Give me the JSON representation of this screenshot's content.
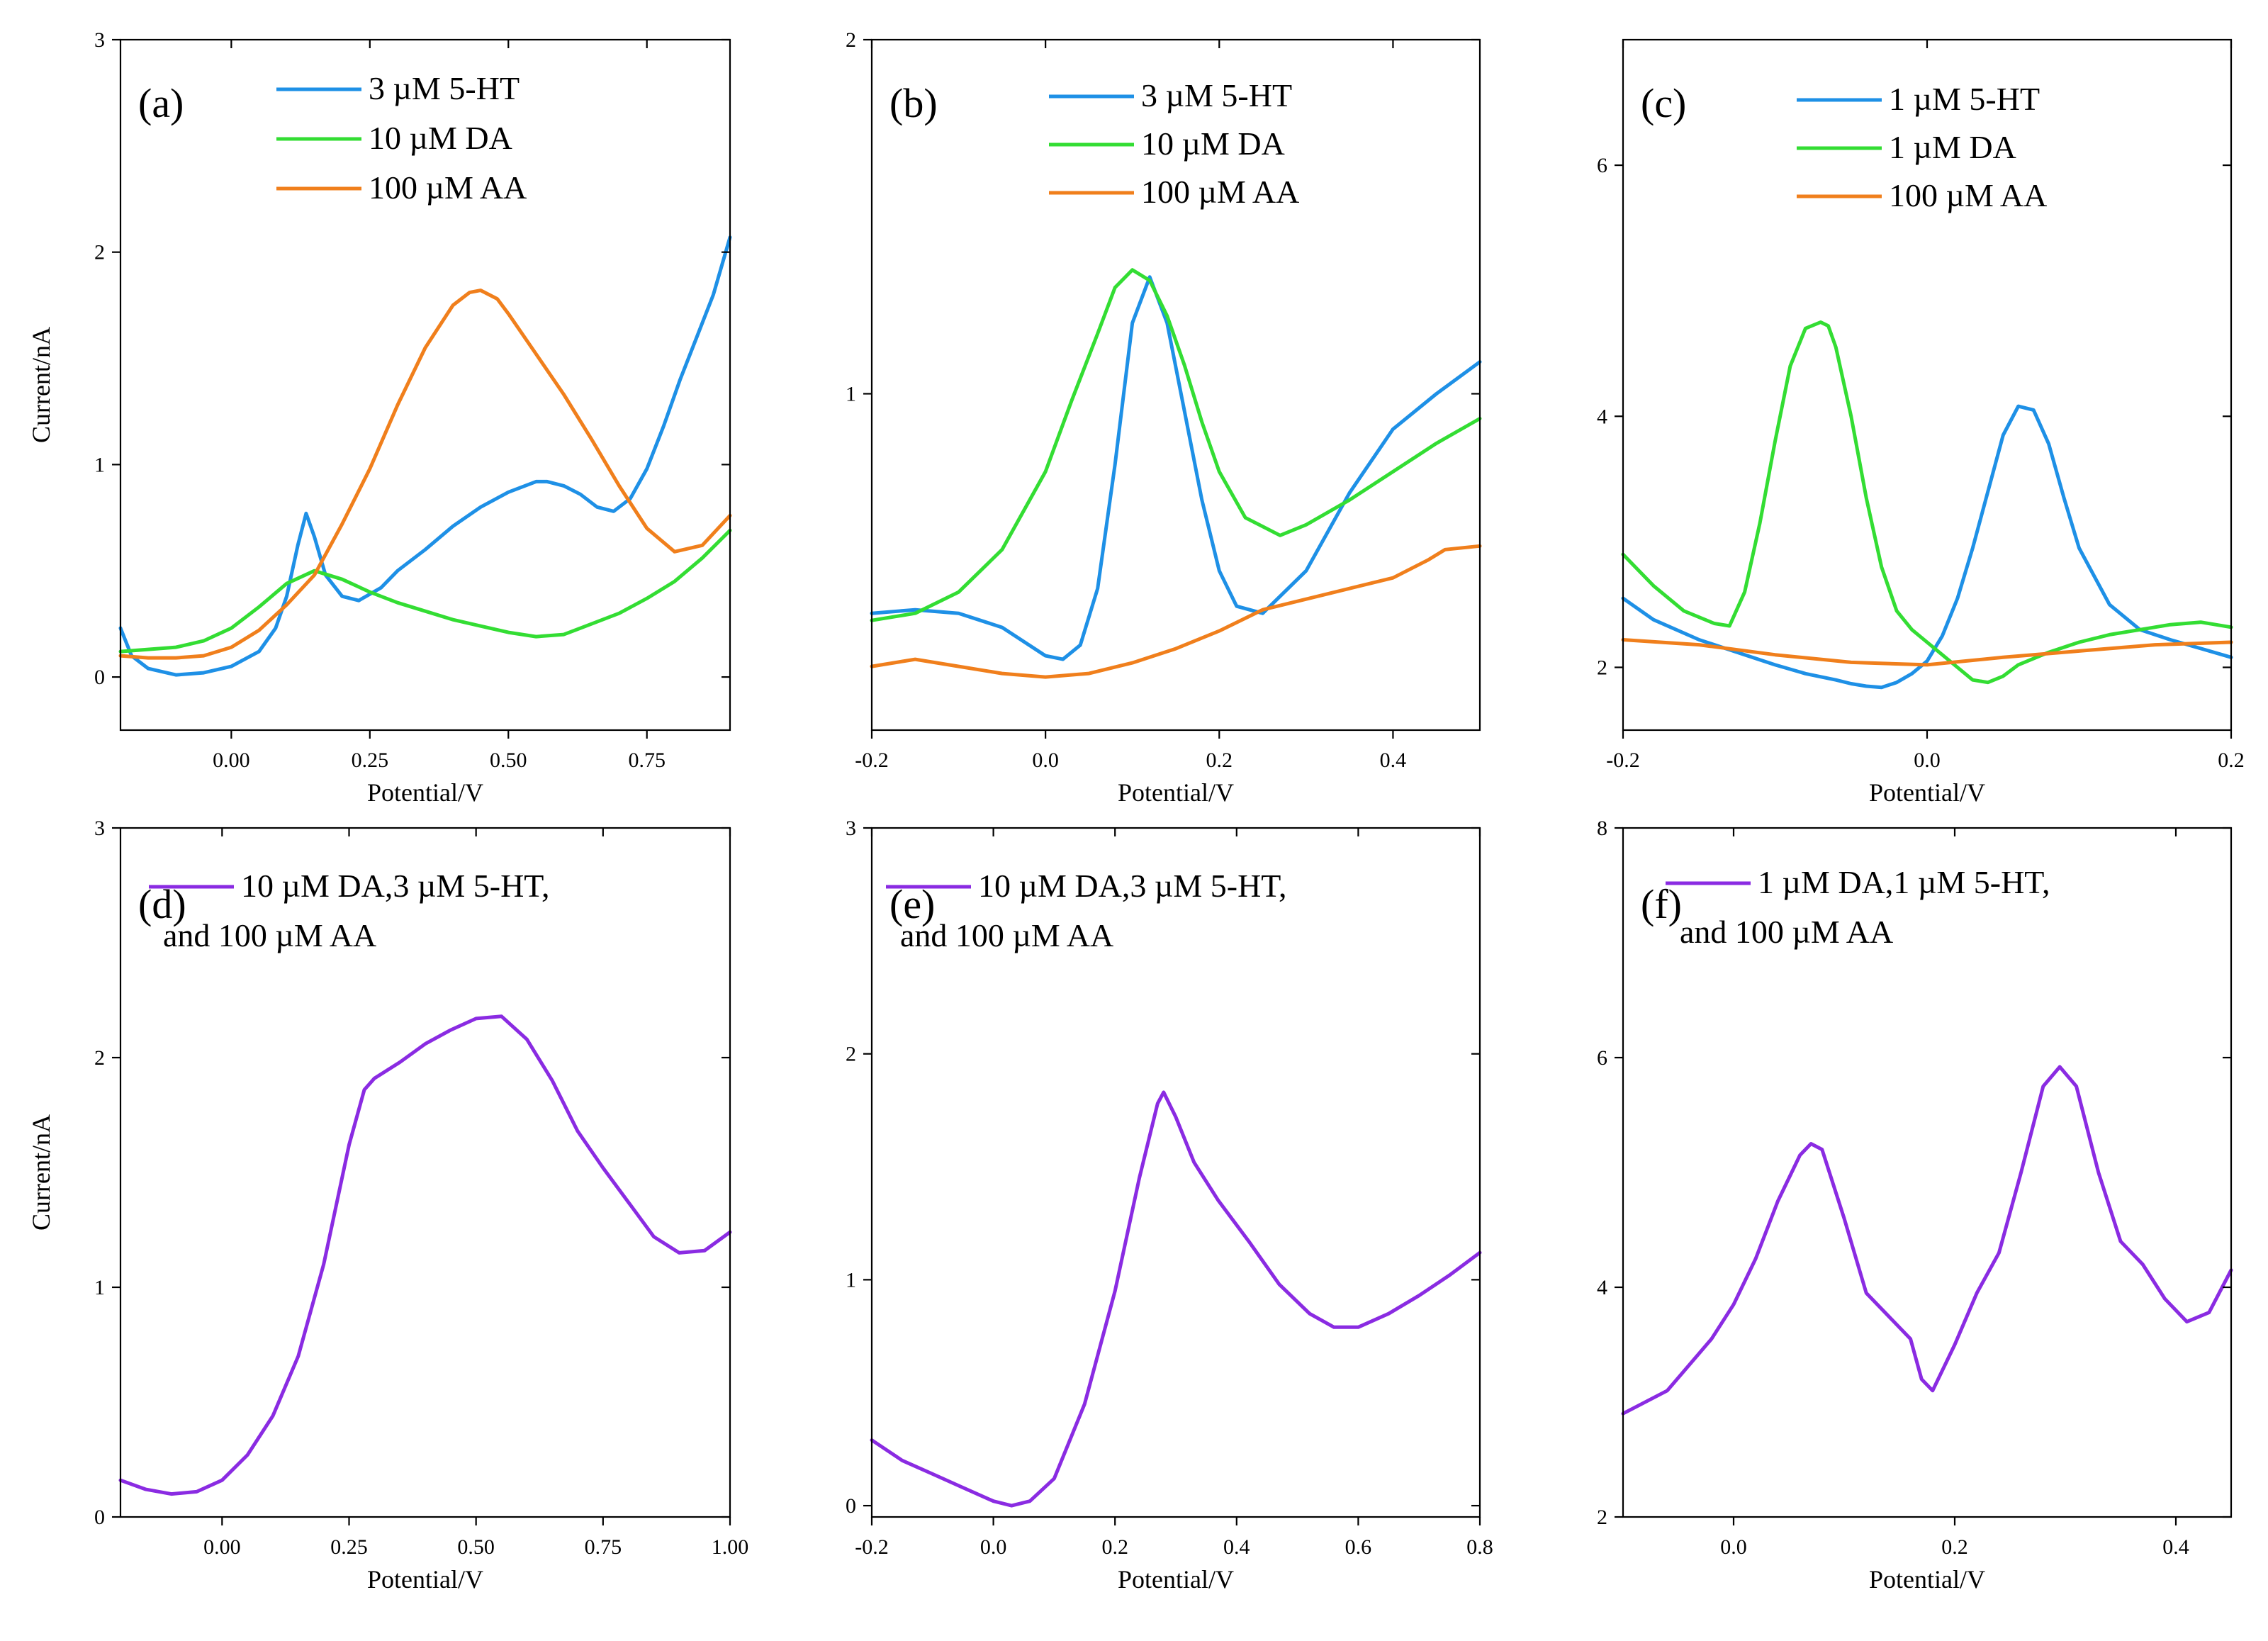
{
  "chart_data": [
    {
      "id": "a",
      "type": "line",
      "tag": "(a)",
      "xlim": [
        -0.2,
        0.9
      ],
      "ylim": [
        -0.25,
        3.0
      ],
      "xticks": [
        0.0,
        0.25,
        0.5,
        0.75
      ],
      "xtick_labels": [
        "0.00",
        "0.25",
        "0.50",
        "0.75"
      ],
      "yticks": [
        0,
        1,
        2,
        3
      ],
      "ytick_labels": [
        "0",
        "1",
        "2",
        "3"
      ],
      "xlabel": "Potential/V",
      "ylabel": "Current/nA",
      "legend": [
        "3    µM 5-HT",
        "10   µM DA",
        "100 µM AA"
      ],
      "series": [
        {
          "name": "3 µM 5-HT",
          "color": "#1e90e6",
          "x": [
            -0.2,
            -0.18,
            -0.15,
            -0.1,
            -0.05,
            0.0,
            0.05,
            0.08,
            0.1,
            0.12,
            0.135,
            0.15,
            0.17,
            0.2,
            0.23,
            0.27,
            0.3,
            0.35,
            0.4,
            0.45,
            0.5,
            0.55,
            0.57,
            0.6,
            0.63,
            0.66,
            0.69,
            0.72,
            0.75,
            0.78,
            0.81,
            0.84,
            0.87,
            0.9
          ],
          "y": [
            0.23,
            0.1,
            0.04,
            0.01,
            0.02,
            0.05,
            0.12,
            0.23,
            0.38,
            0.62,
            0.77,
            0.66,
            0.48,
            0.38,
            0.36,
            0.42,
            0.5,
            0.6,
            0.71,
            0.8,
            0.87,
            0.92,
            0.92,
            0.9,
            0.86,
            0.8,
            0.78,
            0.84,
            0.98,
            1.18,
            1.4,
            1.6,
            1.8,
            2.07
          ]
        },
        {
          "name": "10 µM DA",
          "color": "#33dd33",
          "x": [
            -0.2,
            -0.15,
            -0.1,
            -0.05,
            0.0,
            0.05,
            0.1,
            0.15,
            0.2,
            0.25,
            0.3,
            0.35,
            0.4,
            0.45,
            0.5,
            0.55,
            0.6,
            0.65,
            0.7,
            0.75,
            0.8,
            0.85,
            0.9
          ],
          "y": [
            0.12,
            0.13,
            0.14,
            0.17,
            0.23,
            0.33,
            0.44,
            0.5,
            0.46,
            0.4,
            0.35,
            0.31,
            0.27,
            0.24,
            0.21,
            0.19,
            0.2,
            0.25,
            0.3,
            0.37,
            0.45,
            0.56,
            0.69
          ]
        },
        {
          "name": "100 µM AA",
          "color": "#f07f1c",
          "x": [
            -0.2,
            -0.15,
            -0.1,
            -0.05,
            0.0,
            0.05,
            0.1,
            0.15,
            0.2,
            0.25,
            0.3,
            0.35,
            0.4,
            0.43,
            0.45,
            0.48,
            0.5,
            0.55,
            0.6,
            0.65,
            0.7,
            0.75,
            0.8,
            0.85,
            0.9
          ],
          "y": [
            0.1,
            0.09,
            0.09,
            0.1,
            0.14,
            0.22,
            0.34,
            0.48,
            0.72,
            0.98,
            1.28,
            1.55,
            1.75,
            1.81,
            1.82,
            1.78,
            1.71,
            1.52,
            1.33,
            1.12,
            0.9,
            0.7,
            0.59,
            0.62,
            0.76
          ]
        }
      ]
    },
    {
      "id": "b",
      "type": "line",
      "tag": "(b)",
      "xlim": [
        -0.2,
        0.5
      ],
      "ylim": [
        0.05,
        2.0
      ],
      "xticks": [
        -0.2,
        0.0,
        0.2,
        0.4
      ],
      "xtick_labels": [
        "-0.2",
        "0.0",
        "0.2",
        "0.4"
      ],
      "yticks": [
        1,
        2
      ],
      "ytick_labels": [
        "1",
        "2"
      ],
      "xlabel": "Potential/V",
      "ylabel": "",
      "legend": [
        "3    µM 5-HT",
        "10   µM DA",
        "100 µM AA"
      ],
      "series": [
        {
          "name": "3 µM 5-HT",
          "color": "#1e90e6",
          "x": [
            -0.2,
            -0.15,
            -0.1,
            -0.05,
            0.0,
            0.02,
            0.04,
            0.06,
            0.08,
            0.1,
            0.12,
            0.14,
            0.16,
            0.18,
            0.2,
            0.22,
            0.25,
            0.3,
            0.35,
            0.4,
            0.45,
            0.5
          ],
          "y": [
            0.38,
            0.39,
            0.38,
            0.34,
            0.26,
            0.25,
            0.29,
            0.45,
            0.8,
            1.2,
            1.33,
            1.2,
            0.95,
            0.7,
            0.5,
            0.4,
            0.38,
            0.5,
            0.72,
            0.9,
            1.0,
            1.09
          ]
        },
        {
          "name": "10 µM DA",
          "color": "#33dd33",
          "x": [
            -0.2,
            -0.15,
            -0.1,
            -0.05,
            0.0,
            0.03,
            0.06,
            0.08,
            0.1,
            0.12,
            0.14,
            0.16,
            0.18,
            0.2,
            0.23,
            0.27,
            0.3,
            0.35,
            0.4,
            0.45,
            0.5
          ],
          "y": [
            0.36,
            0.38,
            0.44,
            0.56,
            0.78,
            0.98,
            1.17,
            1.3,
            1.35,
            1.32,
            1.22,
            1.08,
            0.92,
            0.78,
            0.65,
            0.6,
            0.63,
            0.7,
            0.78,
            0.86,
            0.93
          ]
        },
        {
          "name": "100 µM AA",
          "color": "#f07f1c",
          "x": [
            -0.2,
            -0.15,
            -0.1,
            -0.05,
            0.0,
            0.05,
            0.1,
            0.15,
            0.2,
            0.25,
            0.3,
            0.35,
            0.4,
            0.44,
            0.46,
            0.5
          ],
          "y": [
            0.23,
            0.25,
            0.23,
            0.21,
            0.2,
            0.21,
            0.24,
            0.28,
            0.33,
            0.39,
            0.42,
            0.45,
            0.48,
            0.53,
            0.56,
            0.57
          ]
        }
      ]
    },
    {
      "id": "c",
      "type": "line",
      "tag": "(c)",
      "xlim": [
        -0.2,
        0.2
      ],
      "ylim": [
        1.5,
        7.0
      ],
      "xticks": [
        -0.2,
        0.0,
        0.2
      ],
      "xtick_labels": [
        "-0.2",
        "0.0",
        "0.2"
      ],
      "yticks": [
        2,
        4,
        6
      ],
      "ytick_labels": [
        "2",
        "4",
        "6"
      ],
      "xlabel": "Potential/V",
      "ylabel": "",
      "legend": [
        "1   µM 5-HT",
        "1   µM DA",
        "100 µM AA"
      ],
      "series": [
        {
          "name": "1 µM 5-HT",
          "color": "#1e90e6",
          "x": [
            -0.2,
            -0.18,
            -0.15,
            -0.12,
            -0.1,
            -0.08,
            -0.06,
            -0.05,
            -0.04,
            -0.03,
            -0.02,
            -0.01,
            0.0,
            0.01,
            0.02,
            0.03,
            0.04,
            0.05,
            0.06,
            0.07,
            0.08,
            0.09,
            0.1,
            0.12,
            0.14,
            0.16,
            0.18,
            0.2
          ],
          "y": [
            2.55,
            2.38,
            2.22,
            2.1,
            2.02,
            1.95,
            1.9,
            1.87,
            1.85,
            1.84,
            1.88,
            1.95,
            2.05,
            2.25,
            2.55,
            2.95,
            3.4,
            3.85,
            4.08,
            4.05,
            3.78,
            3.35,
            2.95,
            2.5,
            2.3,
            2.22,
            2.15,
            2.08
          ]
        },
        {
          "name": "1 µM DA",
          "color": "#33dd33",
          "x": [
            -0.2,
            -0.18,
            -0.16,
            -0.14,
            -0.13,
            -0.12,
            -0.11,
            -0.1,
            -0.09,
            -0.08,
            -0.07,
            -0.065,
            -0.06,
            -0.05,
            -0.04,
            -0.03,
            -0.02,
            -0.01,
            0.0,
            0.01,
            0.02,
            0.03,
            0.04,
            0.05,
            0.06,
            0.08,
            0.1,
            0.12,
            0.14,
            0.16,
            0.18,
            0.2
          ],
          "y": [
            2.9,
            2.65,
            2.45,
            2.35,
            2.33,
            2.6,
            3.15,
            3.8,
            4.4,
            4.7,
            4.75,
            4.72,
            4.55,
            4.0,
            3.35,
            2.8,
            2.45,
            2.3,
            2.2,
            2.1,
            2.0,
            1.9,
            1.88,
            1.93,
            2.02,
            2.12,
            2.2,
            2.26,
            2.3,
            2.34,
            2.36,
            2.32
          ]
        },
        {
          "name": "100 µM AA",
          "color": "#f07f1c",
          "x": [
            -0.2,
            -0.15,
            -0.1,
            -0.05,
            0.0,
            0.05,
            0.1,
            0.15,
            0.2
          ],
          "y": [
            2.22,
            2.18,
            2.1,
            2.04,
            2.02,
            2.08,
            2.13,
            2.18,
            2.2
          ]
        }
      ]
    },
    {
      "id": "d",
      "type": "line",
      "tag": "(d)",
      "xlim": [
        -0.2,
        1.0
      ],
      "ylim": [
        0.0,
        3.0
      ],
      "xticks": [
        0.0,
        0.25,
        0.5,
        0.75,
        1.0
      ],
      "xtick_labels": [
        "0.00",
        "0.25",
        "0.50",
        "0.75",
        "1.00"
      ],
      "yticks": [
        0,
        1,
        2,
        3
      ],
      "ytick_labels": [
        "0",
        "1",
        "2",
        "3"
      ],
      "xlabel": "Potential/V",
      "ylabel": "Current/nA",
      "legend": [
        "10 µM DA,3 µM 5-HT,",
        "and 100 µM AA"
      ],
      "series": [
        {
          "name": "10 µM DA,3 µM 5-HT, and 100 µM AA",
          "color": "#8a2be2",
          "x": [
            -0.2,
            -0.15,
            -0.1,
            -0.05,
            0.0,
            0.05,
            0.1,
            0.15,
            0.2,
            0.25,
            0.28,
            0.3,
            0.35,
            0.4,
            0.45,
            0.5,
            0.55,
            0.6,
            0.65,
            0.7,
            0.75,
            0.8,
            0.85,
            0.9,
            0.95,
            1.0
          ],
          "y": [
            0.16,
            0.12,
            0.1,
            0.11,
            0.16,
            0.27,
            0.44,
            0.7,
            1.1,
            1.62,
            1.86,
            1.91,
            1.98,
            2.06,
            2.12,
            2.17,
            2.18,
            2.08,
            1.9,
            1.68,
            1.52,
            1.37,
            1.22,
            1.15,
            1.16,
            1.24
          ]
        }
      ]
    },
    {
      "id": "e",
      "type": "line",
      "tag": "(e)",
      "xlim": [
        -0.2,
        0.8
      ],
      "ylim": [
        -0.05,
        3.0
      ],
      "xticks": [
        -0.2,
        0.0,
        0.2,
        0.4,
        0.6,
        0.8
      ],
      "xtick_labels": [
        "-0.2",
        "0.0",
        "0.2",
        "0.4",
        "0.6",
        "0.8"
      ],
      "yticks": [
        0,
        1,
        2,
        3
      ],
      "ytick_labels": [
        "0",
        "1",
        "2",
        "3"
      ],
      "xlabel": "Potential/V",
      "ylabel": "",
      "legend": [
        "10 µM DA,3 µM 5-HT,",
        "and 100 µM AA"
      ],
      "series": [
        {
          "name": "10 µM DA,3 µM 5-HT, and 100 µM AA",
          "color": "#8a2be2",
          "x": [
            -0.2,
            -0.15,
            -0.1,
            -0.05,
            0.0,
            0.03,
            0.06,
            0.1,
            0.15,
            0.2,
            0.24,
            0.27,
            0.28,
            0.3,
            0.33,
            0.37,
            0.42,
            0.47,
            0.52,
            0.56,
            0.6,
            0.65,
            0.7,
            0.75,
            0.8
          ],
          "y": [
            0.29,
            0.2,
            0.14,
            0.08,
            0.02,
            0.0,
            0.02,
            0.12,
            0.45,
            0.95,
            1.45,
            1.78,
            1.83,
            1.72,
            1.52,
            1.35,
            1.17,
            0.98,
            0.85,
            0.79,
            0.79,
            0.85,
            0.93,
            1.02,
            1.12
          ]
        }
      ]
    },
    {
      "id": "f",
      "type": "line",
      "tag": "(f)",
      "xlim": [
        -0.1,
        0.45
      ],
      "ylim": [
        2.0,
        8.0
      ],
      "xticks": [
        0.0,
        0.2,
        0.4
      ],
      "xtick_labels": [
        "0.0",
        "0.2",
        "0.4"
      ],
      "yticks": [
        2,
        4,
        6,
        8
      ],
      "ytick_labels": [
        "2",
        "4",
        "6",
        "8"
      ],
      "xlabel": "Potential/V",
      "ylabel": "",
      "legend": [
        "1 µM DA,1 µM 5-HT,",
        "and 100 µM AA"
      ],
      "series": [
        {
          "name": "1 µM DA,1 µM 5-HT, and 100 µM AA",
          "color": "#8a2be2",
          "x": [
            -0.1,
            -0.06,
            -0.02,
            0.0,
            0.02,
            0.04,
            0.06,
            0.07,
            0.08,
            0.1,
            0.12,
            0.14,
            0.16,
            0.17,
            0.18,
            0.2,
            0.22,
            0.24,
            0.26,
            0.28,
            0.295,
            0.31,
            0.33,
            0.35,
            0.37,
            0.39,
            0.41,
            0.43,
            0.45
          ],
          "y": [
            2.9,
            3.1,
            3.55,
            3.85,
            4.25,
            4.75,
            5.15,
            5.25,
            5.2,
            4.6,
            3.95,
            3.75,
            3.55,
            3.2,
            3.1,
            3.5,
            3.95,
            4.3,
            5.0,
            5.75,
            5.92,
            5.75,
            5.0,
            4.4,
            4.2,
            3.9,
            3.7,
            3.78,
            4.15
          ]
        }
      ]
    }
  ]
}
